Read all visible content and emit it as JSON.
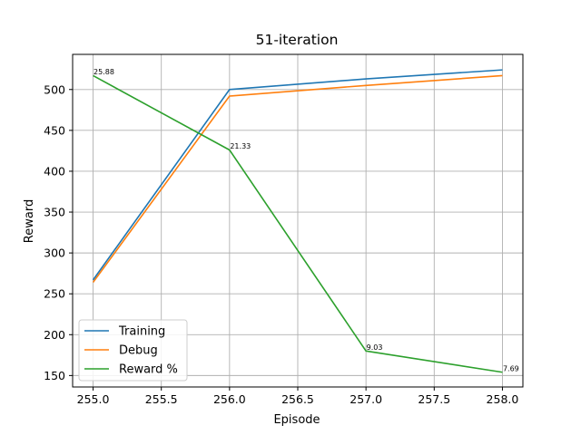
{
  "chart_data": {
    "type": "line",
    "title": "51-iteration",
    "xlabel": "Episode",
    "ylabel": "Reward",
    "x": [
      255.0,
      256.0,
      257.0,
      258.0
    ],
    "xlim": [
      254.85,
      258.15
    ],
    "ylim": [
      136,
      543
    ],
    "xticks": [
      255.0,
      255.5,
      256.0,
      256.5,
      257.0,
      257.5,
      258.0
    ],
    "xtick_labels": [
      "255.0",
      "255.5",
      "256.0",
      "256.5",
      "257.0",
      "257.5",
      "258.0"
    ],
    "yticks": [
      150,
      200,
      250,
      300,
      350,
      400,
      450,
      500
    ],
    "ytick_labels": [
      "150",
      "200",
      "250",
      "300",
      "350",
      "400",
      "450",
      "500"
    ],
    "grid": true,
    "legend_position": "lower-left",
    "series": [
      {
        "name": "Training",
        "color": "#1f77b4",
        "values": [
          267,
          500,
          513,
          524
        ]
      },
      {
        "name": "Debug",
        "color": "#ff7f0e",
        "values": [
          264,
          492,
          505,
          517
        ]
      },
      {
        "name": "Reward %",
        "color": "#2ca02c",
        "values": [
          517,
          426,
          180,
          154
        ],
        "annotations": [
          "25.88",
          "21.33",
          "9.03",
          "7.69"
        ]
      }
    ]
  }
}
